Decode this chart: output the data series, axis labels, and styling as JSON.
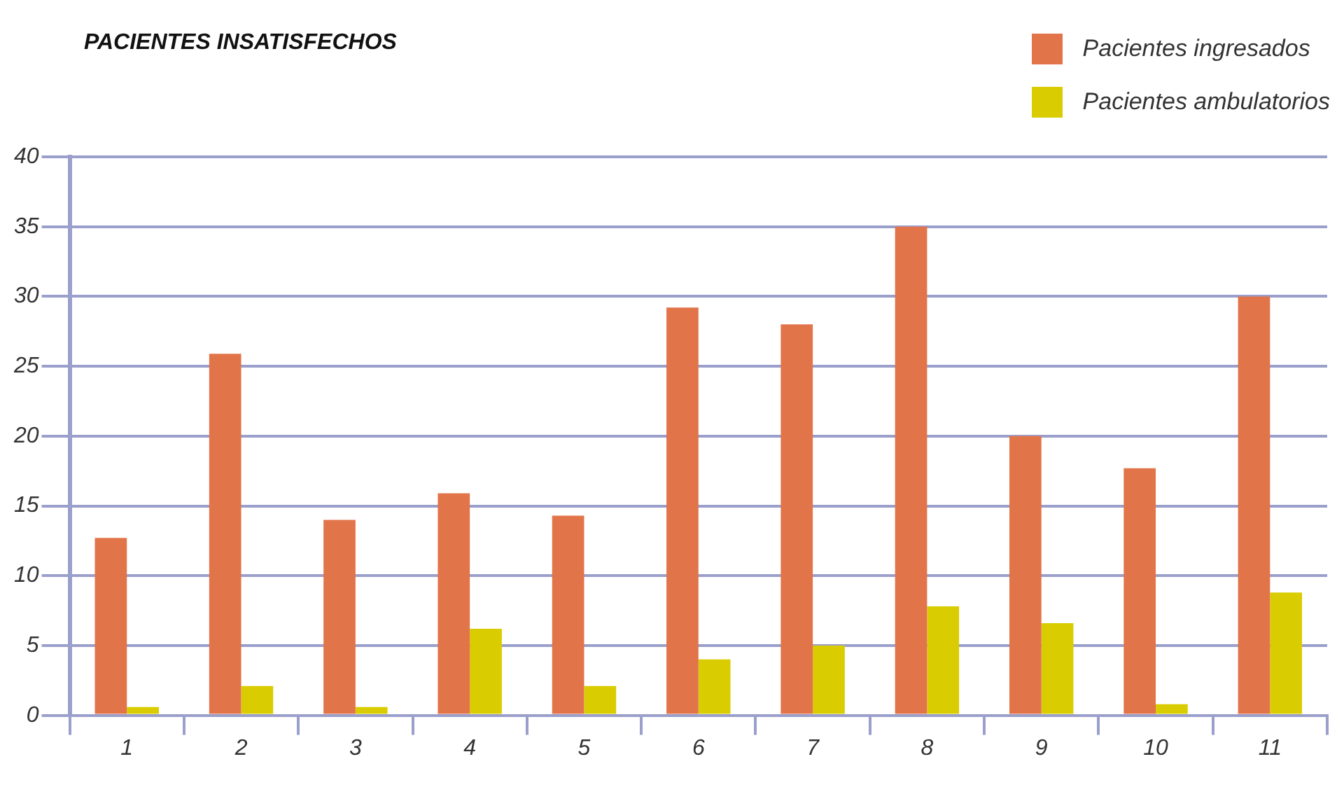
{
  "chart_data": {
    "type": "bar",
    "title": "PACIENTES INSATISFECHOS",
    "categories": [
      "1",
      "2",
      "3",
      "4",
      "5",
      "6",
      "7",
      "8",
      "9",
      "10",
      "11"
    ],
    "series": [
      {
        "name": "Pacientes ingresados",
        "color": "#e2744a",
        "values": [
          12.7,
          25.9,
          14.0,
          15.9,
          14.3,
          29.2,
          28.0,
          35,
          20,
          17.7,
          30
        ]
      },
      {
        "name": "Pacientes ambulatorios",
        "color": "#d9cc00",
        "values": [
          0.6,
          2.1,
          0.6,
          6.2,
          2.1,
          4.0,
          5.0,
          7.8,
          6.6,
          0.8,
          8.8
        ]
      }
    ],
    "ylim": [
      0,
      40
    ],
    "yticks": [
      0,
      5,
      10,
      15,
      20,
      25,
      30,
      35,
      40
    ],
    "grid": "y",
    "legend": "top right"
  }
}
